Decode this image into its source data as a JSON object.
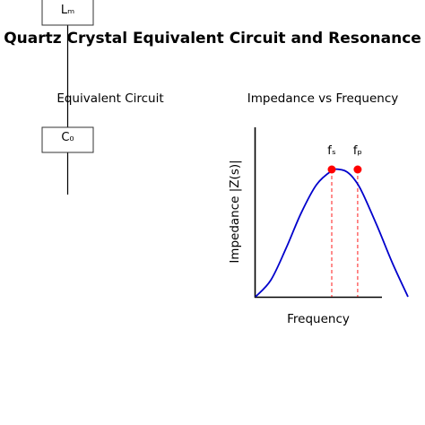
{
  "title": "Quartz Crystal Equivalent Circuit and Resonance",
  "circuit": {
    "subtitle": "Equivalent Circuit",
    "components": {
      "inductor": "Lₘ",
      "capacitor": "C₀"
    }
  },
  "chart_data": {
    "type": "line",
    "title": "Impedance vs Frequency",
    "xlabel": "Frequency",
    "ylabel": "Impedance |Z(s)|",
    "xlim": [
      0,
      1
    ],
    "ylim": [
      0,
      1
    ],
    "grid": false,
    "series": [
      {
        "color": "#0000cc",
        "x": [
          0,
          0.1,
          0.2,
          0.3,
          0.4,
          0.5,
          0.55,
          0.6,
          0.65,
          0.7,
          0.8,
          0.9,
          1.0
        ],
        "y": [
          0,
          0.13,
          0.38,
          0.66,
          0.88,
          0.99,
          1.0,
          0.98,
          0.92,
          0.82,
          0.55,
          0.26,
          0.0
        ]
      }
    ],
    "markers": [
      {
        "label": "fₛ",
        "x": 0.5,
        "y": 1.0,
        "color": "#ff0000"
      },
      {
        "label": "fₚ",
        "x": 0.67,
        "y": 1.0,
        "color": "#ff0000"
      }
    ]
  }
}
